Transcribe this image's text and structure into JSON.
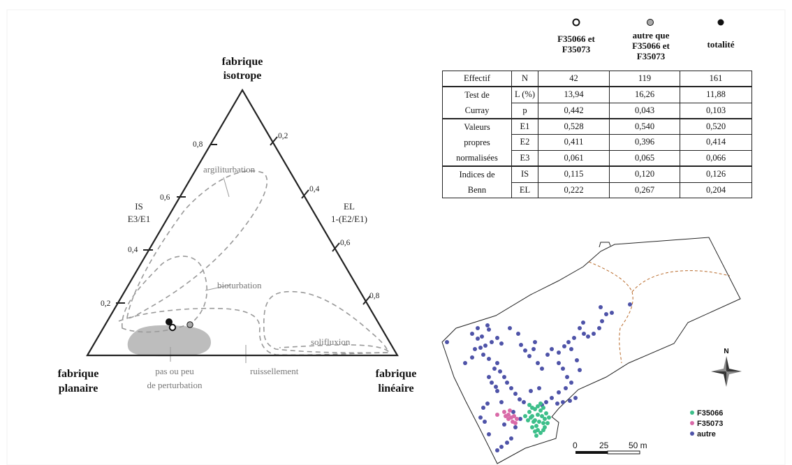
{
  "ternary": {
    "apex_top": [
      "fabrique",
      "isotrope"
    ],
    "apex_left": [
      "fabrique",
      "planaire"
    ],
    "apex_right": [
      "fabrique",
      "linéaire"
    ],
    "left_axis": [
      "IS",
      "E3/E1"
    ],
    "right_axis": [
      "EL",
      "1-(E2/E1)"
    ],
    "left_ticks": [
      "0,8",
      "0,6",
      "0,4",
      "0,2"
    ],
    "right_ticks": [
      "0,2",
      "0,4",
      "0,6",
      "0,8"
    ],
    "zones": {
      "argiliturbation": "argiliturbation",
      "bioturbation": "bioturbation",
      "solifluxion": "solifluxion",
      "ruissellement": "ruissellement",
      "pas_perturbation": [
        "pas ou peu",
        "de perturbation"
      ]
    }
  },
  "table": {
    "headers": [
      {
        "symbol": "open",
        "label": [
          "F35066 et",
          "F35073"
        ]
      },
      {
        "symbol": "grey",
        "label": [
          "autre que",
          "F35066 et",
          "F35073"
        ]
      },
      {
        "symbol": "filled",
        "label": [
          "totalité"
        ]
      }
    ],
    "groups": [
      {
        "name": [
          "Effectif"
        ],
        "rows": [
          {
            "key": "N",
            "values": [
              "42",
              "119",
              "161"
            ]
          }
        ]
      },
      {
        "name": [
          "Test de",
          "Curray"
        ],
        "rows": [
          {
            "key": "L (%)",
            "values": [
              "13,94",
              "16,26",
              "11,88"
            ]
          },
          {
            "key": "p",
            "values": [
              "0,442",
              "0,043",
              "0,103"
            ]
          }
        ]
      },
      {
        "name": [
          "Valeurs",
          "propres",
          "normalisées"
        ],
        "rows": [
          {
            "key": "E1",
            "values": [
              "0,528",
              "0,540",
              "0,520"
            ]
          },
          {
            "key": "E2",
            "values": [
              "0,411",
              "0,396",
              "0,414"
            ]
          },
          {
            "key": "E3",
            "values": [
              "0,061",
              "0,065",
              "0,066"
            ]
          }
        ]
      },
      {
        "name": [
          "Indices de",
          "Benn"
        ],
        "rows": [
          {
            "key": "IS",
            "values": [
              "0,115",
              "0,120",
              "0,126"
            ]
          },
          {
            "key": "EL",
            "values": [
              "0,222",
              "0,267",
              "0,204"
            ]
          }
        ]
      }
    ]
  },
  "map": {
    "north": "N",
    "legend": [
      {
        "label": "F35066",
        "color": "#3dbf8a"
      },
      {
        "label": "F35073",
        "color": "#d96aa8"
      },
      {
        "label": "autre",
        "color": "#4e53a8"
      }
    ],
    "scale_labels": [
      "0",
      "25",
      "50 m"
    ]
  },
  "colors": {
    "line": "#222222",
    "zone_dash": "#999999",
    "fill_zone": "#bdbdbd",
    "excavation": "#b86a2a"
  }
}
